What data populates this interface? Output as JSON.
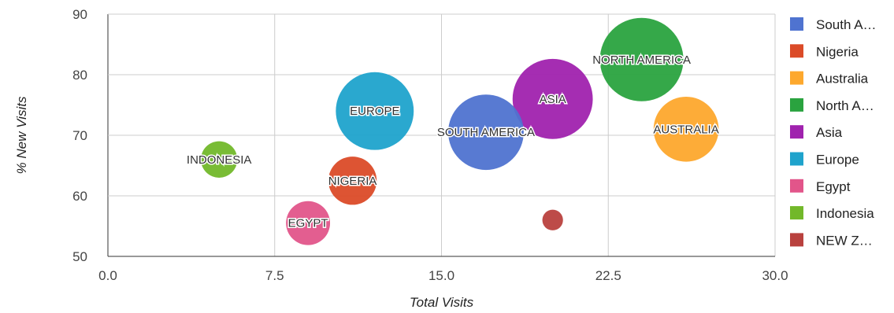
{
  "chart_data": {
    "type": "scatter",
    "variant": "bubble",
    "xlabel": "Total Visits",
    "ylabel": "% New Visits",
    "xlim": [
      0,
      30
    ],
    "ylim": [
      50,
      90
    ],
    "x_ticks": [
      "0.0",
      "7.5",
      "15.0",
      "22.5",
      "30.0"
    ],
    "y_ticks": [
      "50",
      "60",
      "70",
      "80",
      "90"
    ],
    "grid": true,
    "legend_position": "right",
    "series": [
      {
        "name": "South A…",
        "label": "SOUTH AMERICA",
        "x": 17,
        "y": 70.5,
        "size": 28,
        "color": "#4f73d0"
      },
      {
        "name": "Nigeria",
        "label": "NIGERIA",
        "x": 11,
        "y": 62.5,
        "size": 10,
        "color": "#db4b28"
      },
      {
        "name": "Australia",
        "label": "AUSTRALIA",
        "x": 26,
        "y": 71,
        "size": 20,
        "color": "#fda82d"
      },
      {
        "name": "North A…",
        "label": "NORTH AMERICA",
        "x": 24,
        "y": 82.5,
        "size": 35,
        "color": "#2aa33f"
      },
      {
        "name": "Asia",
        "label": "ASIA",
        "x": 20,
        "y": 76,
        "size": 32,
        "color": "#a022ae"
      },
      {
        "name": "Europe",
        "label": "EUROPE",
        "x": 12,
        "y": 74,
        "size": 30,
        "color": "#1fa3cc"
      },
      {
        "name": "Egypt",
        "label": "EGYPT",
        "x": 9,
        "y": 55.5,
        "size": 8,
        "color": "#e2558a"
      },
      {
        "name": "Indonesia",
        "label": "INDONESIA",
        "x": 5,
        "y": 66,
        "size": 5,
        "color": "#72b82a"
      },
      {
        "name": "NEW Z…",
        "label": "",
        "x": 20,
        "y": 56,
        "size": 1,
        "color": "#b9413e"
      }
    ]
  }
}
